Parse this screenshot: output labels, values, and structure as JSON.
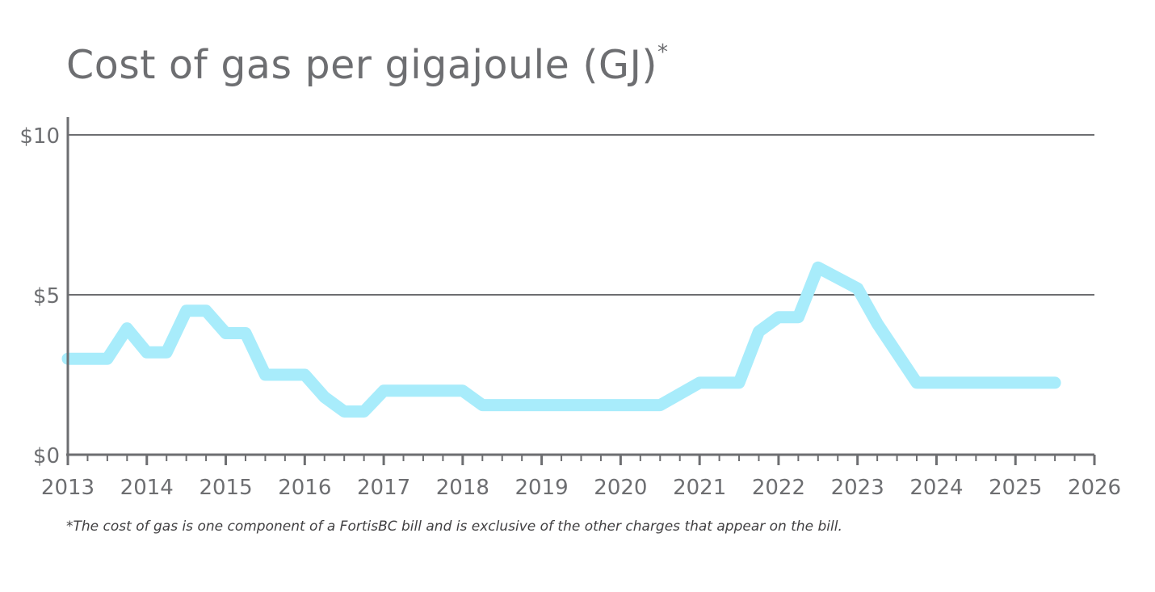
{
  "title": "Cost of gas per gigajoule (GJ)",
  "title_marker": "*",
  "footnote": "*The cost of gas is one component of a FortisBC bill and is exclusive of the other charges that appear on the bill.",
  "colors": {
    "line": "#a8ecfb",
    "axis": "#6d6e71",
    "grid": "#6d6e71",
    "text": "#6d6e71"
  },
  "chart_data": {
    "type": "line",
    "title": "Cost of gas per gigajoule (GJ)*",
    "xlabel": "",
    "ylabel": "",
    "xlim": [
      2013,
      2026
    ],
    "ylim": [
      0,
      10
    ],
    "x_ticks": [
      "2013",
      "2014",
      "2015",
      "2016",
      "2017",
      "2018",
      "2019",
      "2020",
      "2021",
      "2022",
      "2023",
      "2024",
      "2025",
      "2026"
    ],
    "y_ticks": [
      {
        "value": 0,
        "label": "$0"
      },
      {
        "value": 5,
        "label": "$5"
      },
      {
        "value": 10,
        "label": "$10"
      }
    ],
    "grid": "horizontal at $5 and $10",
    "legend": "none",
    "series": [
      {
        "x": [
          2013.0,
          2013.5,
          2013.75,
          2014.0,
          2014.25,
          2014.5,
          2014.75,
          2015.0,
          2015.25,
          2015.5,
          2016.0,
          2016.25,
          2016.5,
          2016.75,
          2017.0,
          2018.0,
          2018.25,
          2020.5,
          2021.0,
          2021.5,
          2021.75,
          2022.0,
          2022.25,
          2022.5,
          2023.0,
          2023.25,
          2023.75,
          2025.5
        ],
        "y": [
          3.0,
          3.0,
          3.95,
          3.2,
          3.2,
          4.5,
          4.5,
          3.8,
          3.8,
          2.5,
          2.5,
          1.8,
          1.35,
          1.35,
          2.0,
          2.0,
          1.55,
          1.55,
          2.25,
          2.25,
          3.85,
          4.3,
          4.3,
          5.85,
          5.2,
          4.1,
          2.25,
          2.25
        ]
      }
    ]
  }
}
